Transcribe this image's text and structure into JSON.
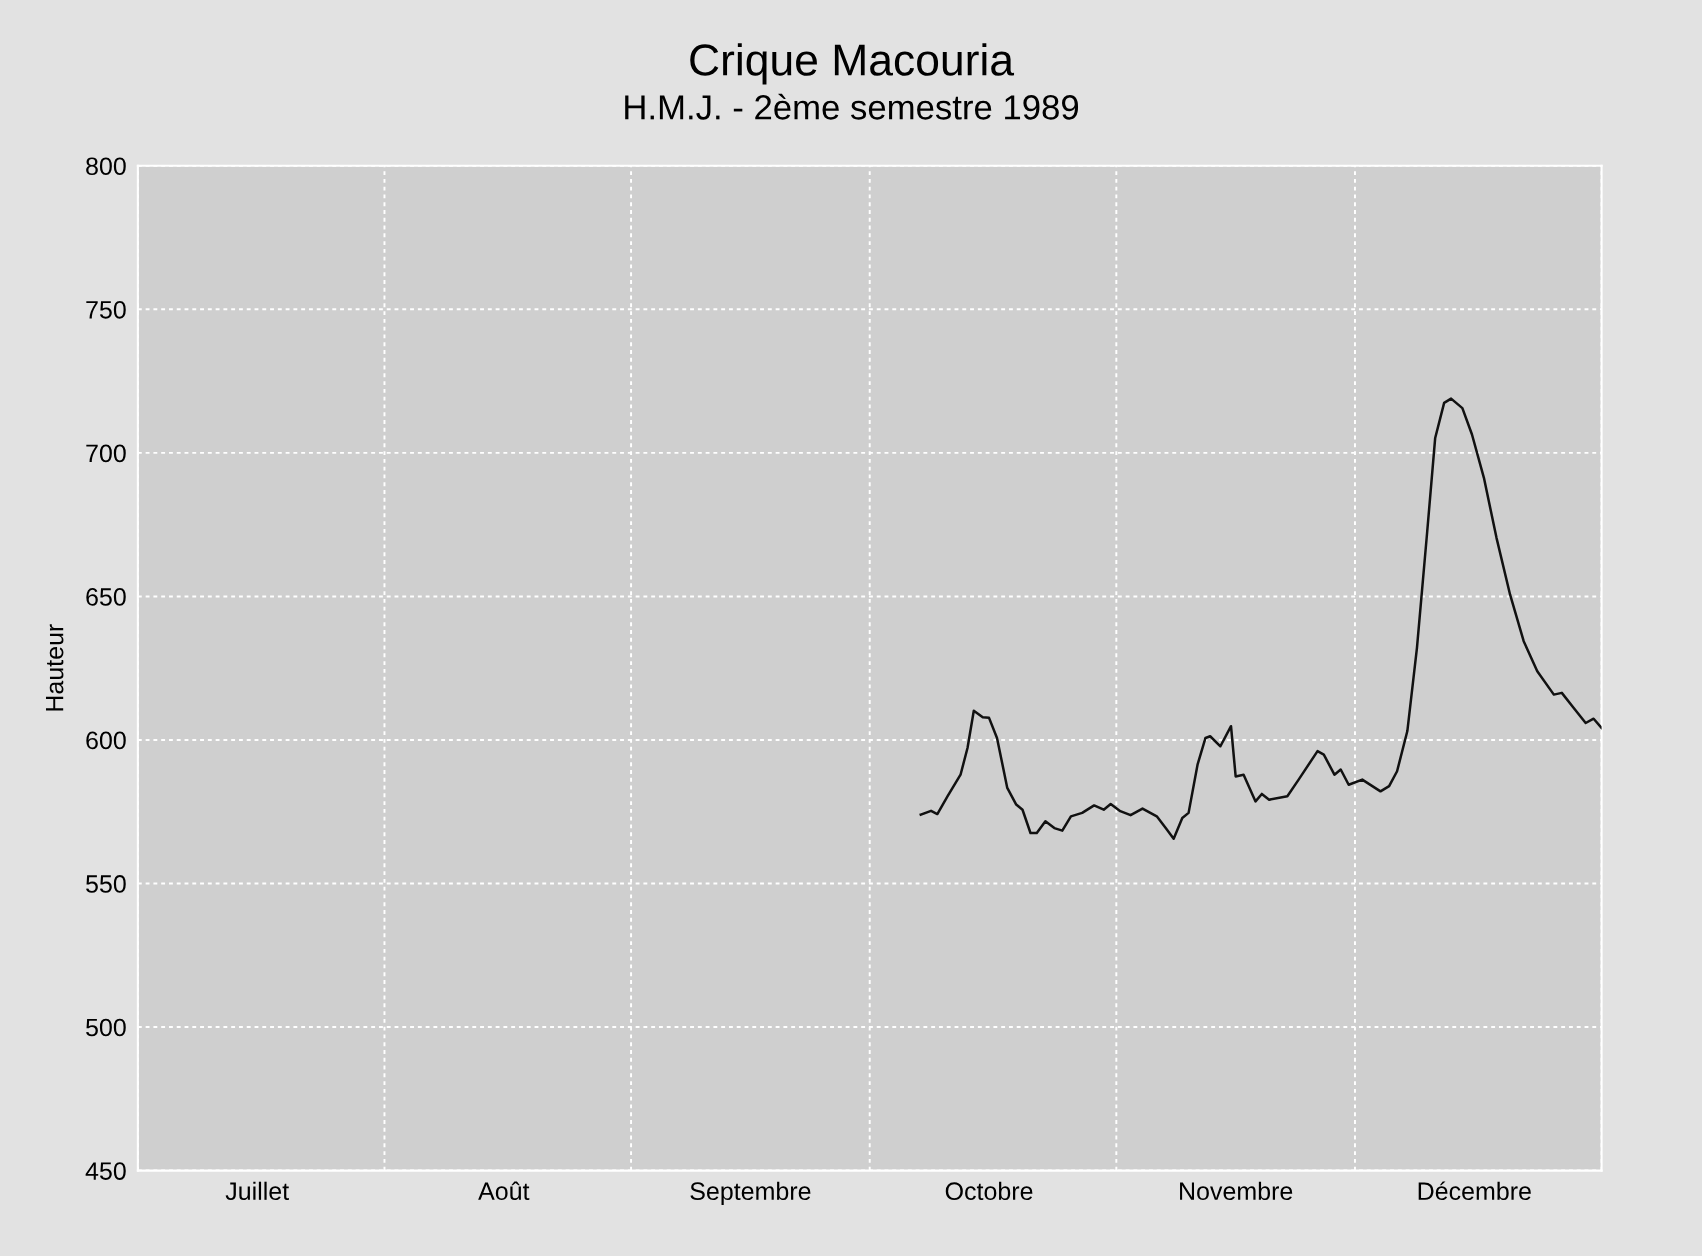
{
  "chart_data": {
    "type": "line",
    "title": "Crique Macouria",
    "subtitle": "H.M.J. - 2ème semestre 1989",
    "ylabel": "Hauteur",
    "x": [
      "1989-10-07T10:00",
      "1989-10-08T17:00",
      "1989-10-09T12:00",
      "1989-10-10T19:00",
      "1989-10-12T10:00",
      "1989-10-13T07:00",
      "1989-10-14T02:00",
      "1989-10-15T05:00",
      "1989-10-16T00:00",
      "1989-10-17T00:00",
      "1989-10-18T07:00",
      "1989-10-19T10:00",
      "1989-10-20T05:00",
      "1989-10-21T05:00",
      "1989-10-22T00:00",
      "1989-10-23T02:00",
      "1989-10-24T05:00",
      "1989-10-25T05:00",
      "1989-10-26T07:00",
      "1989-10-27T17:00",
      "1989-10-29T05:00",
      "1989-10-30T10:00",
      "1989-10-31T07:00",
      "1989-11-01T12:00",
      "1989-11-02T19:00",
      "1989-11-04T07:00",
      "1989-11-06T02:00",
      "1989-11-07T05:00",
      "1989-11-08T05:00",
      "1989-11-09T07:00",
      "1989-11-10T02:00",
      "1989-11-11T05:00",
      "1989-11-12T05:00",
      "1989-11-12T19:00",
      "1989-11-14T02:00",
      "1989-11-15T10:00",
      "1989-11-16T00:00",
      "1989-11-17T00:00",
      "1989-11-18T12:00",
      "1989-11-19T07:00",
      "1989-11-20T05:00",
      "1989-11-22T12:00",
      "1989-11-23T22:00",
      "1989-11-26T07:00",
      "1989-11-27T02:00",
      "1989-11-28T10:00",
      "1989-11-29T05:00",
      "1989-11-30T05:00",
      "1989-12-01T22:00",
      "1989-12-04T05:00",
      "1989-12-05T07:00",
      "1989-12-06T07:00",
      "1989-12-07T14:00",
      "1989-12-08T19:00",
      "1989-12-10T02:00",
      "1989-12-11T02:00",
      "1989-12-12T05:00",
      "1989-12-13T02:00",
      "1989-12-14T12:00",
      "1989-12-15T17:00",
      "1989-12-17T05:00",
      "1989-12-18T19:00",
      "1989-12-20T12:00",
      "1989-12-22T05:00",
      "1989-12-23T22:00",
      "1989-12-26T00:00",
      "1989-12-27T00:00",
      "1989-12-28T12:00",
      "1989-12-30T00:00",
      "1989-12-31T00:00",
      "1990-01-01T00:00"
    ],
    "series": [
      {
        "color": "#111111",
        "values": [
          574.0,
          575.3,
          574.2,
          580.4,
          587.9,
          597.2,
          610.2,
          607.9,
          607.7,
          600.7,
          583.3,
          577.5,
          575.7,
          567.6,
          567.6,
          571.7,
          569.3,
          568.4,
          573.4,
          574.6,
          577.2,
          575.7,
          577.7,
          575.2,
          573.8,
          576.1,
          573.4,
          569.3,
          565.6,
          572.8,
          574.6,
          591.4,
          600.7,
          601.3,
          597.8,
          604.8,
          587.3,
          587.9,
          578.6,
          581.2,
          579.2,
          580.4,
          586.2,
          596.1,
          594.9,
          587.9,
          589.7,
          584.4,
          586.2,
          582.1,
          583.9,
          589.1,
          603.1,
          632.1,
          672.7,
          705.2,
          717.4,
          718.9,
          715.6,
          706.4,
          691.3,
          670.4,
          650.6,
          634.4,
          623.9,
          615.8,
          616.4,
          611.1,
          605.9,
          607.4,
          604.2
        ]
      }
    ],
    "xlim": [
      "1989-07-01",
      "1990-01-01"
    ],
    "xticks": [
      {
        "value": "1989-07-01",
        "label": null
      },
      {
        "value": "1989-07-16",
        "label": "Juillet"
      },
      {
        "value": "1989-08-01",
        "label": null
      },
      {
        "value": "1989-08-16",
        "label": "Août"
      },
      {
        "value": "1989-09-01",
        "label": null
      },
      {
        "value": "1989-09-16",
        "label": "Septembre"
      },
      {
        "value": "1989-10-01",
        "label": null
      },
      {
        "value": "1989-10-16",
        "label": "Octobre"
      },
      {
        "value": "1989-11-01",
        "label": null
      },
      {
        "value": "1989-11-16",
        "label": "Novembre"
      },
      {
        "value": "1989-12-01",
        "label": null
      },
      {
        "value": "1989-12-16",
        "label": "Décembre"
      },
      {
        "value": "1990-01-01",
        "label": null
      }
    ],
    "ylim": [
      450,
      800
    ],
    "yticks": [
      450,
      500,
      550,
      600,
      650,
      700,
      750,
      800
    ],
    "grid": true,
    "line_style": "solid",
    "marker": "none"
  }
}
